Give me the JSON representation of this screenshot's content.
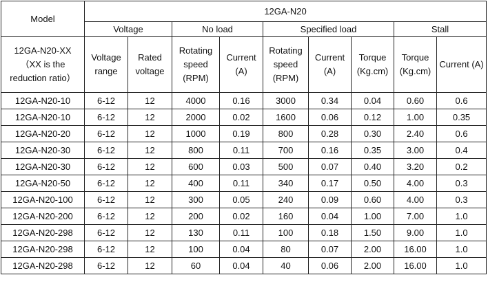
{
  "header": {
    "model": "Model",
    "product": "12GA-N20",
    "groups": {
      "voltage": "Voltage",
      "no_load": "No load",
      "specified_load": "Specified load",
      "stall": "Stall"
    },
    "model_note": "12GA-N20-XX （XX is the reduction ratio）",
    "columns": {
      "voltage_range": "Voltage range",
      "rated_voltage": "Rated voltage",
      "noload_speed": "Rotating speed (RPM)",
      "noload_current": "Current (A)",
      "load_speed": "Rotating speed (RPM)",
      "load_current": "Current (A)",
      "load_torque": "Torque (Kg.cm)",
      "stall_torque": "Torque (Kg.cm)",
      "stall_current": "Current (A)"
    }
  },
  "rows": [
    {
      "model": "12GA-N20-10",
      "vrange": "6-12",
      "rated": "12",
      "nl_speed": "4000",
      "nl_current": "0.16",
      "sl_speed": "3000",
      "sl_current": "0.34",
      "sl_torque": "0.04",
      "st_torque": "0.60",
      "st_current": "0.6"
    },
    {
      "model": "12GA-N20-10",
      "vrange": "6-12",
      "rated": "12",
      "nl_speed": "2000",
      "nl_current": "0.02",
      "sl_speed": "1600",
      "sl_current": "0.06",
      "sl_torque": "0.12",
      "st_torque": "1.00",
      "st_current": "0.35"
    },
    {
      "model": "12GA-N20-20",
      "vrange": "6-12",
      "rated": "12",
      "nl_speed": "1000",
      "nl_current": "0.19",
      "sl_speed": "800",
      "sl_current": "0.28",
      "sl_torque": "0.30",
      "st_torque": "2.40",
      "st_current": "0.6"
    },
    {
      "model": "12GA-N20-30",
      "vrange": "6-12",
      "rated": "12",
      "nl_speed": "800",
      "nl_current": "0.11",
      "sl_speed": "700",
      "sl_current": "0.16",
      "sl_torque": "0.35",
      "st_torque": "3.00",
      "st_current": "0.4"
    },
    {
      "model": "12GA-N20-30",
      "vrange": "6-12",
      "rated": "12",
      "nl_speed": "600",
      "nl_current": "0.03",
      "sl_speed": "500",
      "sl_current": "0.07",
      "sl_torque": "0.40",
      "st_torque": "3.20",
      "st_current": "0.2"
    },
    {
      "model": "12GA-N20-50",
      "vrange": "6-12",
      "rated": "12",
      "nl_speed": "400",
      "nl_current": "0.11",
      "sl_speed": "340",
      "sl_current": "0.17",
      "sl_torque": "0.50",
      "st_torque": "4.00",
      "st_current": "0.3"
    },
    {
      "model": "12GA-N20-100",
      "vrange": "6-12",
      "rated": "12",
      "nl_speed": "300",
      "nl_current": "0.05",
      "sl_speed": "240",
      "sl_current": "0.09",
      "sl_torque": "0.60",
      "st_torque": "4.00",
      "st_current": "0.3"
    },
    {
      "model": "12GA-N20-200",
      "vrange": "6-12",
      "rated": "12",
      "nl_speed": "200",
      "nl_current": "0.02",
      "sl_speed": "160",
      "sl_current": "0.04",
      "sl_torque": "1.00",
      "st_torque": "7.00",
      "st_current": "1.0"
    },
    {
      "model": "12GA-N20-298",
      "vrange": "6-12",
      "rated": "12",
      "nl_speed": "130",
      "nl_current": "0.11",
      "sl_speed": "100",
      "sl_current": "0.18",
      "sl_torque": "1.50",
      "st_torque": "9.00",
      "st_current": "1.0"
    },
    {
      "model": "12GA-N20-298",
      "vrange": "6-12",
      "rated": "12",
      "nl_speed": "100",
      "nl_current": "0.04",
      "sl_speed": "80",
      "sl_current": "0.07",
      "sl_torque": "2.00",
      "st_torque": "16.00",
      "st_current": "1.0"
    },
    {
      "model": "12GA-N20-298",
      "vrange": "6-12",
      "rated": "12",
      "nl_speed": "60",
      "nl_current": "0.04",
      "sl_speed": "40",
      "sl_current": "0.06",
      "sl_torque": "2.00",
      "st_torque": "16.00",
      "st_current": "1.0"
    }
  ]
}
